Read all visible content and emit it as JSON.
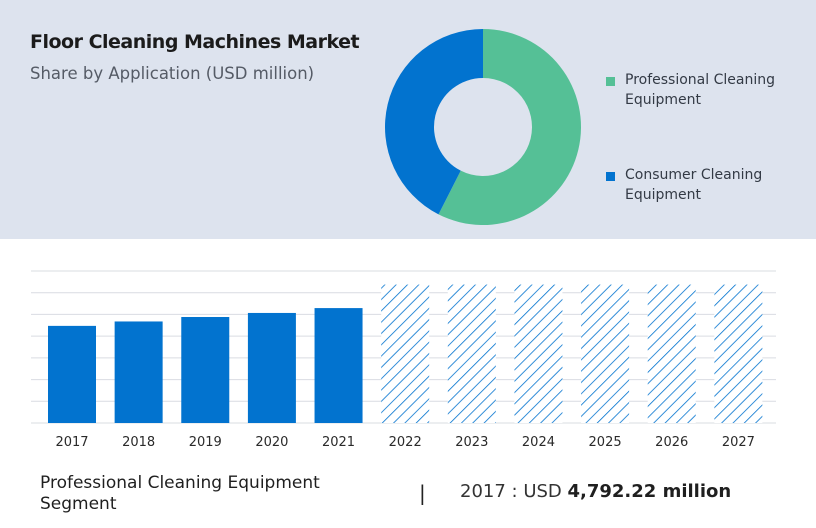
{
  "header": {
    "title": "Floor Cleaning Machines Market",
    "subtitle": "Share by Application (USD million)"
  },
  "chart_data": [
    {
      "type": "pie",
      "title": "Floor Cleaning Machines Market",
      "subtitle": "Share by Application (USD million)",
      "donut": true,
      "legend_position": "right",
      "slices": [
        {
          "label": "Professional Cleaning Equipment",
          "value": 57.5,
          "color": "#55c096"
        },
        {
          "label": "Consumer Cleaning Equipment",
          "value": 42.5,
          "color": "#0273cf"
        }
      ]
    },
    {
      "type": "bar",
      "categories": [
        "2017",
        "2018",
        "2019",
        "2020",
        "2021",
        "2022",
        "2023",
        "2024",
        "2025",
        "2026",
        "2027"
      ],
      "values": [
        4792.22,
        5010,
        5230,
        5430,
        5670,
        6830,
        6830,
        6830,
        6830,
        6830,
        6830
      ],
      "forecast_from": "2022",
      "ylim": [
        0,
        7500
      ],
      "grid": true,
      "bar_color": "#0273cf",
      "forecast_style": "hatched"
    }
  ],
  "footer": {
    "segment": "Professional Cleaning Equipment Segment",
    "separator": "|",
    "year_prefix": "2017 : USD ",
    "value_text": "4,792.22 million"
  }
}
